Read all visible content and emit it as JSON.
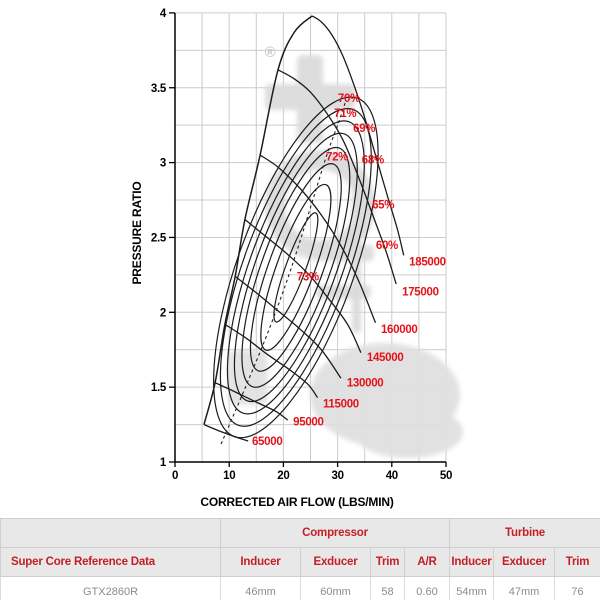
{
  "chart_data": {
    "type": "line",
    "title": "",
    "xlabel": "CORRECTED AIR FLOW (LBS/MIN)",
    "ylabel": "PRESSURE RATIO",
    "xlim": [
      0,
      50
    ],
    "ylim": [
      1,
      4
    ],
    "x_ticks": [
      0,
      10,
      20,
      30,
      40,
      50
    ],
    "y_ticks": [
      1,
      1.5,
      2,
      2.5,
      3,
      3.5,
      4
    ],
    "grid": {
      "show": true,
      "x_step": 5,
      "y_step": 0.25,
      "color": "#cccccc"
    },
    "label_color": "#e3131a",
    "line_color": "#1c1c1c",
    "watermark_symbol": "®",
    "surge_line": [
      [
        5.35,
        1.25
      ],
      [
        7.4,
        1.53
      ],
      [
        9.2,
        1.92
      ],
      [
        11.1,
        2.24
      ],
      [
        12.9,
        2.62
      ],
      [
        15.7,
        3.05
      ],
      [
        19,
        3.62
      ],
      [
        22,
        3.87
      ],
      [
        25.3,
        3.98
      ]
    ],
    "speed_lines": [
      {
        "label": "65000",
        "points": [
          [
            5.35,
            1.25
          ],
          [
            8,
            1.21
          ],
          [
            11,
            1.17
          ],
          [
            13.5,
            1.14
          ]
        ],
        "label_pos": [
          14.2,
          1.14
        ]
      },
      {
        "label": "95000",
        "points": [
          [
            7.4,
            1.53
          ],
          [
            11,
            1.47
          ],
          [
            15,
            1.4
          ],
          [
            18.5,
            1.34
          ],
          [
            20.8,
            1.28
          ]
        ],
        "label_pos": [
          21.8,
          1.27
        ]
      },
      {
        "label": "115000",
        "points": [
          [
            9.2,
            1.92
          ],
          [
            13,
            1.83
          ],
          [
            17,
            1.72
          ],
          [
            21,
            1.62
          ],
          [
            24.5,
            1.52
          ],
          [
            26.3,
            1.43
          ]
        ],
        "label_pos": [
          27.3,
          1.39
        ]
      },
      {
        "label": "130000",
        "points": [
          [
            11.1,
            2.24
          ],
          [
            15,
            2.13
          ],
          [
            19,
            2.01
          ],
          [
            23,
            1.89
          ],
          [
            27,
            1.75
          ],
          [
            30.6,
            1.56
          ]
        ],
        "label_pos": [
          31.7,
          1.53
        ]
      },
      {
        "label": "145000",
        "points": [
          [
            12.9,
            2.62
          ],
          [
            17,
            2.5
          ],
          [
            21,
            2.38
          ],
          [
            25,
            2.24
          ],
          [
            29,
            2.06
          ],
          [
            32,
            1.91
          ],
          [
            34.3,
            1.73
          ]
        ],
        "label_pos": [
          35.4,
          1.7
        ]
      },
      {
        "label": "160000",
        "points": [
          [
            15.7,
            3.05
          ],
          [
            19,
            2.97
          ],
          [
            23,
            2.83
          ],
          [
            27,
            2.65
          ],
          [
            31,
            2.42
          ],
          [
            34,
            2.2
          ],
          [
            37,
            1.93
          ]
        ],
        "label_pos": [
          38.0,
          1.89
        ]
      },
      {
        "label": "175000",
        "points": [
          [
            19,
            3.62
          ],
          [
            22,
            3.56
          ],
          [
            25,
            3.47
          ],
          [
            28,
            3.33
          ],
          [
            31,
            3.15
          ],
          [
            34,
            2.89
          ],
          [
            37,
            2.6
          ],
          [
            39,
            2.4
          ],
          [
            40.8,
            2.19
          ]
        ],
        "label_pos": [
          41.9,
          2.14
        ]
      },
      {
        "label": "185000",
        "points": [
          [
            25.3,
            3.98
          ],
          [
            27,
            3.94
          ],
          [
            29,
            3.85
          ],
          [
            31,
            3.71
          ],
          [
            33,
            3.52
          ],
          [
            35,
            3.3
          ],
          [
            37,
            3.05
          ],
          [
            39,
            2.8
          ],
          [
            41,
            2.56
          ],
          [
            42.2,
            2.38
          ]
        ],
        "label_pos": [
          43.2,
          2.34
        ]
      }
    ],
    "efficiency_contours": [
      {
        "label": "73%",
        "a": 58,
        "b": 10,
        "label_pos": [
          24.5,
          2.24
        ]
      },
      {
        "label": "72%",
        "a": 88,
        "b": 19,
        "label_pos": [
          29.9,
          3.04
        ]
      },
      {
        "label": "71%",
        "a": 110,
        "b": 27,
        "label_pos": [
          31.4,
          3.33
        ]
      },
      {
        "label": "70%",
        "a": 127,
        "b": 34,
        "label_pos": [
          32.1,
          3.43
        ]
      },
      {
        "label": "69%",
        "a": 142,
        "b": 40,
        "label_pos": [
          34.9,
          3.23
        ]
      },
      {
        "label": "68%",
        "a": 155,
        "b": 46,
        "label_pos": [
          36.5,
          3.02
        ]
      },
      {
        "label": "65%",
        "a": 168,
        "b": 52,
        "label_pos": [
          38.4,
          2.72
        ]
      },
      {
        "label": "60%",
        "a": 180,
        "b": 58,
        "label_pos": [
          39.1,
          2.45
        ]
      }
    ],
    "contour_center": [
      22.3,
      2.3
    ],
    "contour_angle_deg": -70,
    "peak_efficiency_locus": [
      [
        8.5,
        1.12
      ],
      [
        13,
        1.5
      ],
      [
        17.5,
        1.9
      ],
      [
        21.5,
        2.3
      ],
      [
        25,
        2.7
      ],
      [
        28,
        3.05
      ],
      [
        30.3,
        3.28
      ],
      [
        31.4,
        3.4
      ]
    ]
  },
  "table": {
    "row_header": "Super Core Reference Data",
    "groups": [
      {
        "label": "Compressor",
        "span": 4
      },
      {
        "label": "Turbine",
        "span": 3
      }
    ],
    "columns": [
      "Inducer",
      "Exducer",
      "Trim",
      "A/R",
      "Inducer",
      "Exducer",
      "Trim"
    ],
    "rows": [
      {
        "name": "GTX2860R",
        "values": [
          "46mm",
          "60mm",
          "58",
          "0.60",
          "54mm",
          "47mm",
          "76"
        ]
      }
    ],
    "header_text_color": "#c41e26",
    "header_bg": "#e8e8e8",
    "value_color": "#8c8c8c"
  }
}
